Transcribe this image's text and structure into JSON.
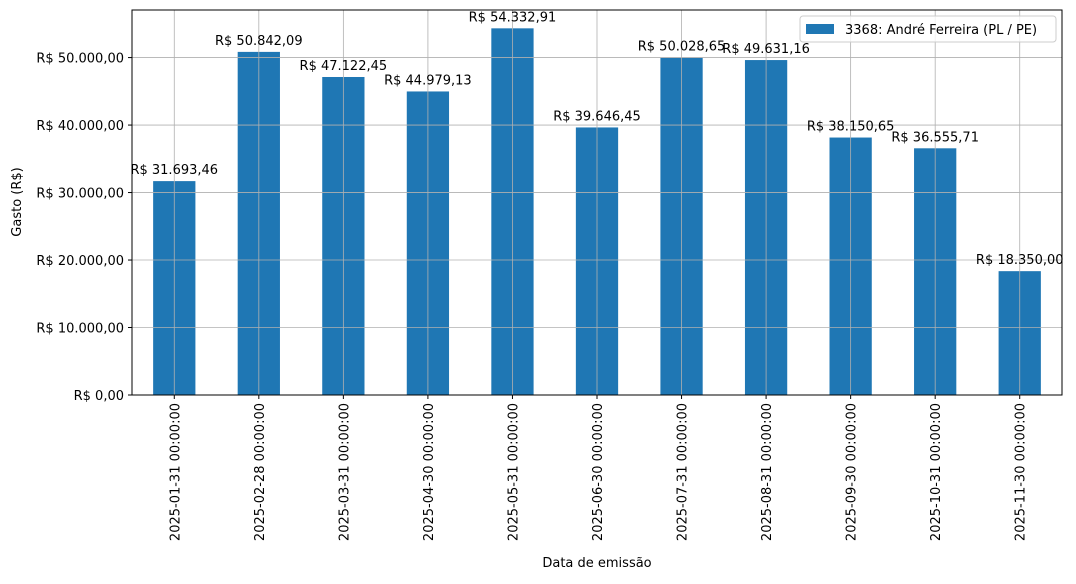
{
  "chart_data": {
    "type": "bar",
    "title": "",
    "xlabel": "Data de emissão",
    "ylabel": "Gasto (R$)",
    "ylim": [
      0,
      57049.56
    ],
    "grid": true,
    "legend_position": "top-right",
    "categories": [
      "2025-01-31 00:00:00",
      "2025-02-28 00:00:00",
      "2025-03-31 00:00:00",
      "2025-04-30 00:00:00",
      "2025-05-31 00:00:00",
      "2025-06-30 00:00:00",
      "2025-07-31 00:00:00",
      "2025-08-31 00:00:00",
      "2025-09-30 00:00:00",
      "2025-10-31 00:00:00",
      "2025-11-30 00:00:00"
    ],
    "series": [
      {
        "name": "3368: André Ferreira (PL / PE)",
        "color": "#1f77b4",
        "values": [
          31693.46,
          50842.09,
          47122.45,
          44979.13,
          54332.91,
          39646.45,
          50028.65,
          49631.16,
          38150.65,
          36555.71,
          18350.0
        ],
        "data_labels": [
          "R$ 31.693,46",
          "R$ 50.842,09",
          "R$ 47.122,45",
          "R$ 44.979,13",
          "R$ 54.332,91",
          "R$ 39.646,45",
          "R$ 50.028,65",
          "R$ 49.631,16",
          "R$ 38.150,65",
          "R$ 36.555,71",
          "R$ 18.350,00"
        ]
      }
    ],
    "yticks": [
      {
        "value": 0,
        "label": "R$ 0,00"
      },
      {
        "value": 10000,
        "label": "R$ 10.000,00"
      },
      {
        "value": 20000,
        "label": "R$ 20.000,00"
      },
      {
        "value": 30000,
        "label": "R$ 30.000,00"
      },
      {
        "value": 40000,
        "label": "R$ 40.000,00"
      },
      {
        "value": 50000,
        "label": "R$ 50.000,00"
      }
    ]
  }
}
